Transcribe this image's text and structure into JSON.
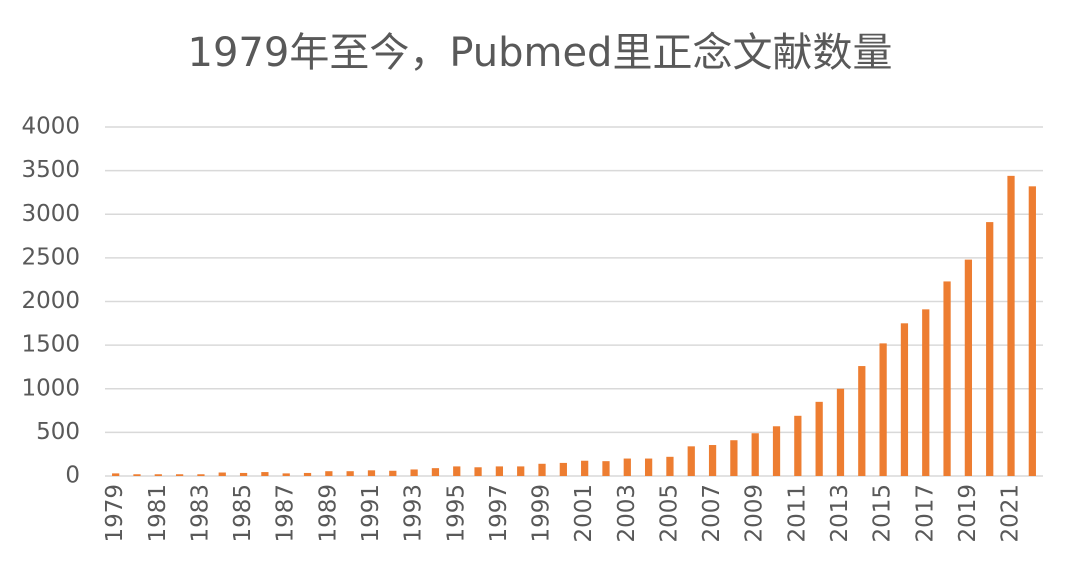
{
  "chart_data": {
    "type": "bar",
    "title": "1979年至今，Pubmed里正念文献数量",
    "categories": [
      "1979",
      null,
      "1981",
      null,
      "1983",
      null,
      "1985",
      null,
      "1987",
      null,
      "1989",
      null,
      "1991",
      null,
      "1993",
      null,
      "1995",
      null,
      "1997",
      null,
      "1999",
      null,
      "2001",
      null,
      "2003",
      null,
      "2005",
      null,
      "2007",
      null,
      "2009",
      null,
      "2011",
      null,
      "2013",
      null,
      "2015",
      null,
      "2017",
      null,
      "2019",
      null,
      "2021",
      null
    ],
    "values": [
      30,
      20,
      20,
      20,
      20,
      40,
      35,
      45,
      30,
      35,
      55,
      55,
      65,
      60,
      75,
      90,
      110,
      100,
      110,
      110,
      140,
      150,
      175,
      170,
      200,
      200,
      220,
      340,
      355,
      410,
      490,
      570,
      690,
      850,
      1000,
      1260,
      1520,
      1750,
      1910,
      2230,
      2480,
      2910,
      3440,
      3320
    ],
    "color": "#ed7d31",
    "ylim": [
      0,
      4000
    ],
    "yticks": [
      0,
      500,
      1000,
      1500,
      2000,
      2500,
      3000,
      3500,
      4000
    ],
    "grid": true
  }
}
